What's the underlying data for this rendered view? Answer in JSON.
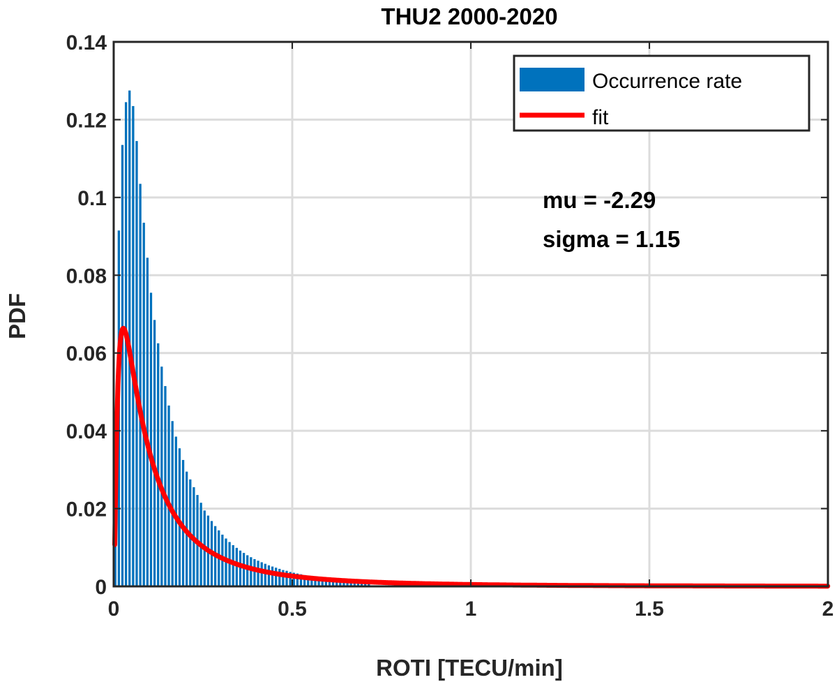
{
  "chart_data": {
    "type": "bar",
    "title": "THU2 2000-2020",
    "xlabel": "ROTI [TECU/min]",
    "ylabel": "PDF",
    "xlim": [
      0,
      2
    ],
    "ylim": [
      0,
      0.14
    ],
    "xticks": [
      0,
      0.5,
      1,
      1.5,
      2
    ],
    "xtick_labels": [
      "0",
      "0.5",
      "1",
      "1.5",
      "2"
    ],
    "yticks": [
      0,
      0.02,
      0.04,
      0.06,
      0.08,
      0.1,
      0.12,
      0.14
    ],
    "ytick_labels": [
      "0",
      "0.02",
      "0.04",
      "0.06",
      "0.08",
      "0.1",
      "0.12",
      "0.14"
    ],
    "grid": true,
    "legend_position": "top-right",
    "bin_width": 0.01,
    "series": [
      {
        "name": "Occurrence rate",
        "kind": "bar",
        "color": "#0072BD",
        "values": [
          0.0165,
          0.0915,
          0.1135,
          0.1245,
          0.1275,
          0.1235,
          0.1145,
          0.1035,
          0.0935,
          0.0845,
          0.0755,
          0.0685,
          0.0625,
          0.0565,
          0.0515,
          0.0465,
          0.0425,
          0.0385,
          0.0355,
          0.0325,
          0.0295,
          0.0275,
          0.0255,
          0.0235,
          0.0215,
          0.0195,
          0.0182,
          0.0168,
          0.0155,
          0.0144,
          0.0133,
          0.0123,
          0.0114,
          0.0106,
          0.0099,
          0.0092,
          0.0086,
          0.008,
          0.0075,
          0.007,
          0.0066,
          0.0062,
          0.0058,
          0.0054,
          0.0051,
          0.0048,
          0.0045,
          0.0042,
          0.004,
          0.0037,
          0.0035,
          0.0033,
          0.0031,
          0.0029,
          0.0027,
          0.0026,
          0.0024,
          0.0023,
          0.0022,
          0.0021,
          0.002,
          0.0019,
          0.0018,
          0.0017,
          0.0016,
          0.0015,
          0.0014,
          0.0013,
          0.0012,
          0.0011,
          0.001,
          0.0009
        ]
      },
      {
        "name": "fit",
        "kind": "line",
        "color": "#FF0000",
        "distribution": "lognormal",
        "mu": -2.29,
        "sigma": 1.15
      }
    ],
    "annotations": [
      "mu = -2.29",
      "sigma = 1.15"
    ]
  }
}
